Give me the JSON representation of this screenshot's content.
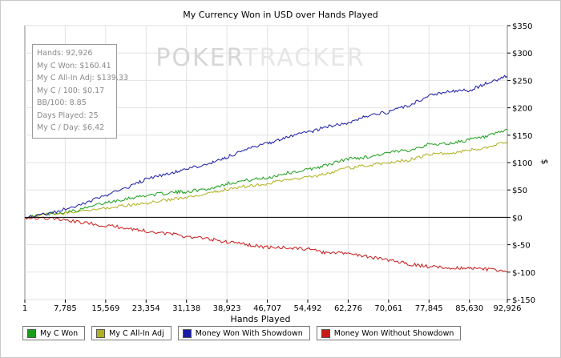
{
  "chart_data": {
    "type": "line",
    "title": "My Currency Won in USD over Hands Played",
    "xlabel": "Hands Played",
    "ylabel": "$",
    "watermark": "POKERTRACKER",
    "xlim": [
      1,
      92926
    ],
    "ylim": [
      -150,
      350
    ],
    "x_ticks": [
      1,
      7785,
      15569,
      23354,
      31138,
      38923,
      46707,
      54492,
      62276,
      70061,
      77845,
      85630,
      92926
    ],
    "x_tick_labels": [
      "1",
      "7,785",
      "15,569",
      "23,354",
      "31,138",
      "38,923",
      "46,707",
      "54,492",
      "62,276",
      "70,061",
      "77,845",
      "85,630",
      "92,926"
    ],
    "y_ticks": [
      -150,
      -100,
      -50,
      0,
      50,
      100,
      150,
      200,
      250,
      300,
      350
    ],
    "y_tick_labels": [
      "$-150",
      "$-100",
      "$-50",
      "$0",
      "$50",
      "$100",
      "$150",
      "$200",
      "$250",
      "$300",
      "$350"
    ],
    "grid": true,
    "legend_position": "bottom",
    "stats": [
      "Hands: 92,926",
      "My C Won: $160.41",
      "My C All-In Adj: $139.33",
      "My C / 100: $0.17",
      "BB/100: 8.85",
      "Days Played: 25",
      "My C / Day: $6.42"
    ],
    "series": [
      {
        "name": "My C Won",
        "color": "#1a9e1a",
        "x": [
          1,
          5000,
          10000,
          15569,
          20000,
          23354,
          28000,
          31138,
          36000,
          38923,
          43000,
          46707,
          50000,
          54492,
          58000,
          62276,
          66000,
          70061,
          74000,
          77845,
          82000,
          85630,
          89000,
          92926
        ],
        "values": [
          0,
          7,
          12,
          27,
          35,
          40,
          45,
          47,
          53,
          62,
          68,
          72,
          80,
          87,
          95,
          107,
          110,
          118,
          123,
          133,
          135,
          142,
          147,
          160
        ]
      },
      {
        "name": "My C All-In Adj",
        "color": "#b0b020",
        "x": [
          1,
          5000,
          10000,
          15569,
          20000,
          23354,
          28000,
          31138,
          36000,
          38923,
          43000,
          46707,
          50000,
          54492,
          58000,
          62276,
          66000,
          70061,
          74000,
          77845,
          82000,
          85630,
          89000,
          92926
        ],
        "values": [
          0,
          6,
          10,
          17,
          22,
          26,
          33,
          35,
          44,
          52,
          57,
          62,
          68,
          73,
          80,
          90,
          95,
          100,
          105,
          115,
          117,
          123,
          127,
          139
        ]
      },
      {
        "name": "Money Won With Showdown",
        "color": "#1a1aa8",
        "x": [
          1,
          5000,
          10000,
          15569,
          20000,
          23354,
          28000,
          31138,
          36000,
          38923,
          43000,
          46707,
          50000,
          54492,
          58000,
          62276,
          66000,
          70061,
          74000,
          77845,
          82000,
          85630,
          89000,
          92926
        ],
        "values": [
          0,
          8,
          20,
          40,
          55,
          70,
          80,
          88,
          100,
          110,
          125,
          135,
          145,
          155,
          165,
          172,
          185,
          192,
          205,
          222,
          230,
          232,
          245,
          258
        ]
      },
      {
        "name": "Money Won Without Showdown",
        "color": "#c81a1a",
        "x": [
          1,
          5000,
          10000,
          15569,
          20000,
          23354,
          28000,
          31138,
          36000,
          38923,
          43000,
          46707,
          50000,
          54492,
          58000,
          62276,
          66000,
          70061,
          74000,
          77845,
          82000,
          85630,
          89000,
          92926
        ],
        "values": [
          0,
          -2,
          -8,
          -15,
          -20,
          -25,
          -30,
          -35,
          -40,
          -45,
          -50,
          -55,
          -55,
          -58,
          -65,
          -65,
          -72,
          -78,
          -85,
          -90,
          -92,
          -92,
          -95,
          -99
        ]
      }
    ]
  }
}
